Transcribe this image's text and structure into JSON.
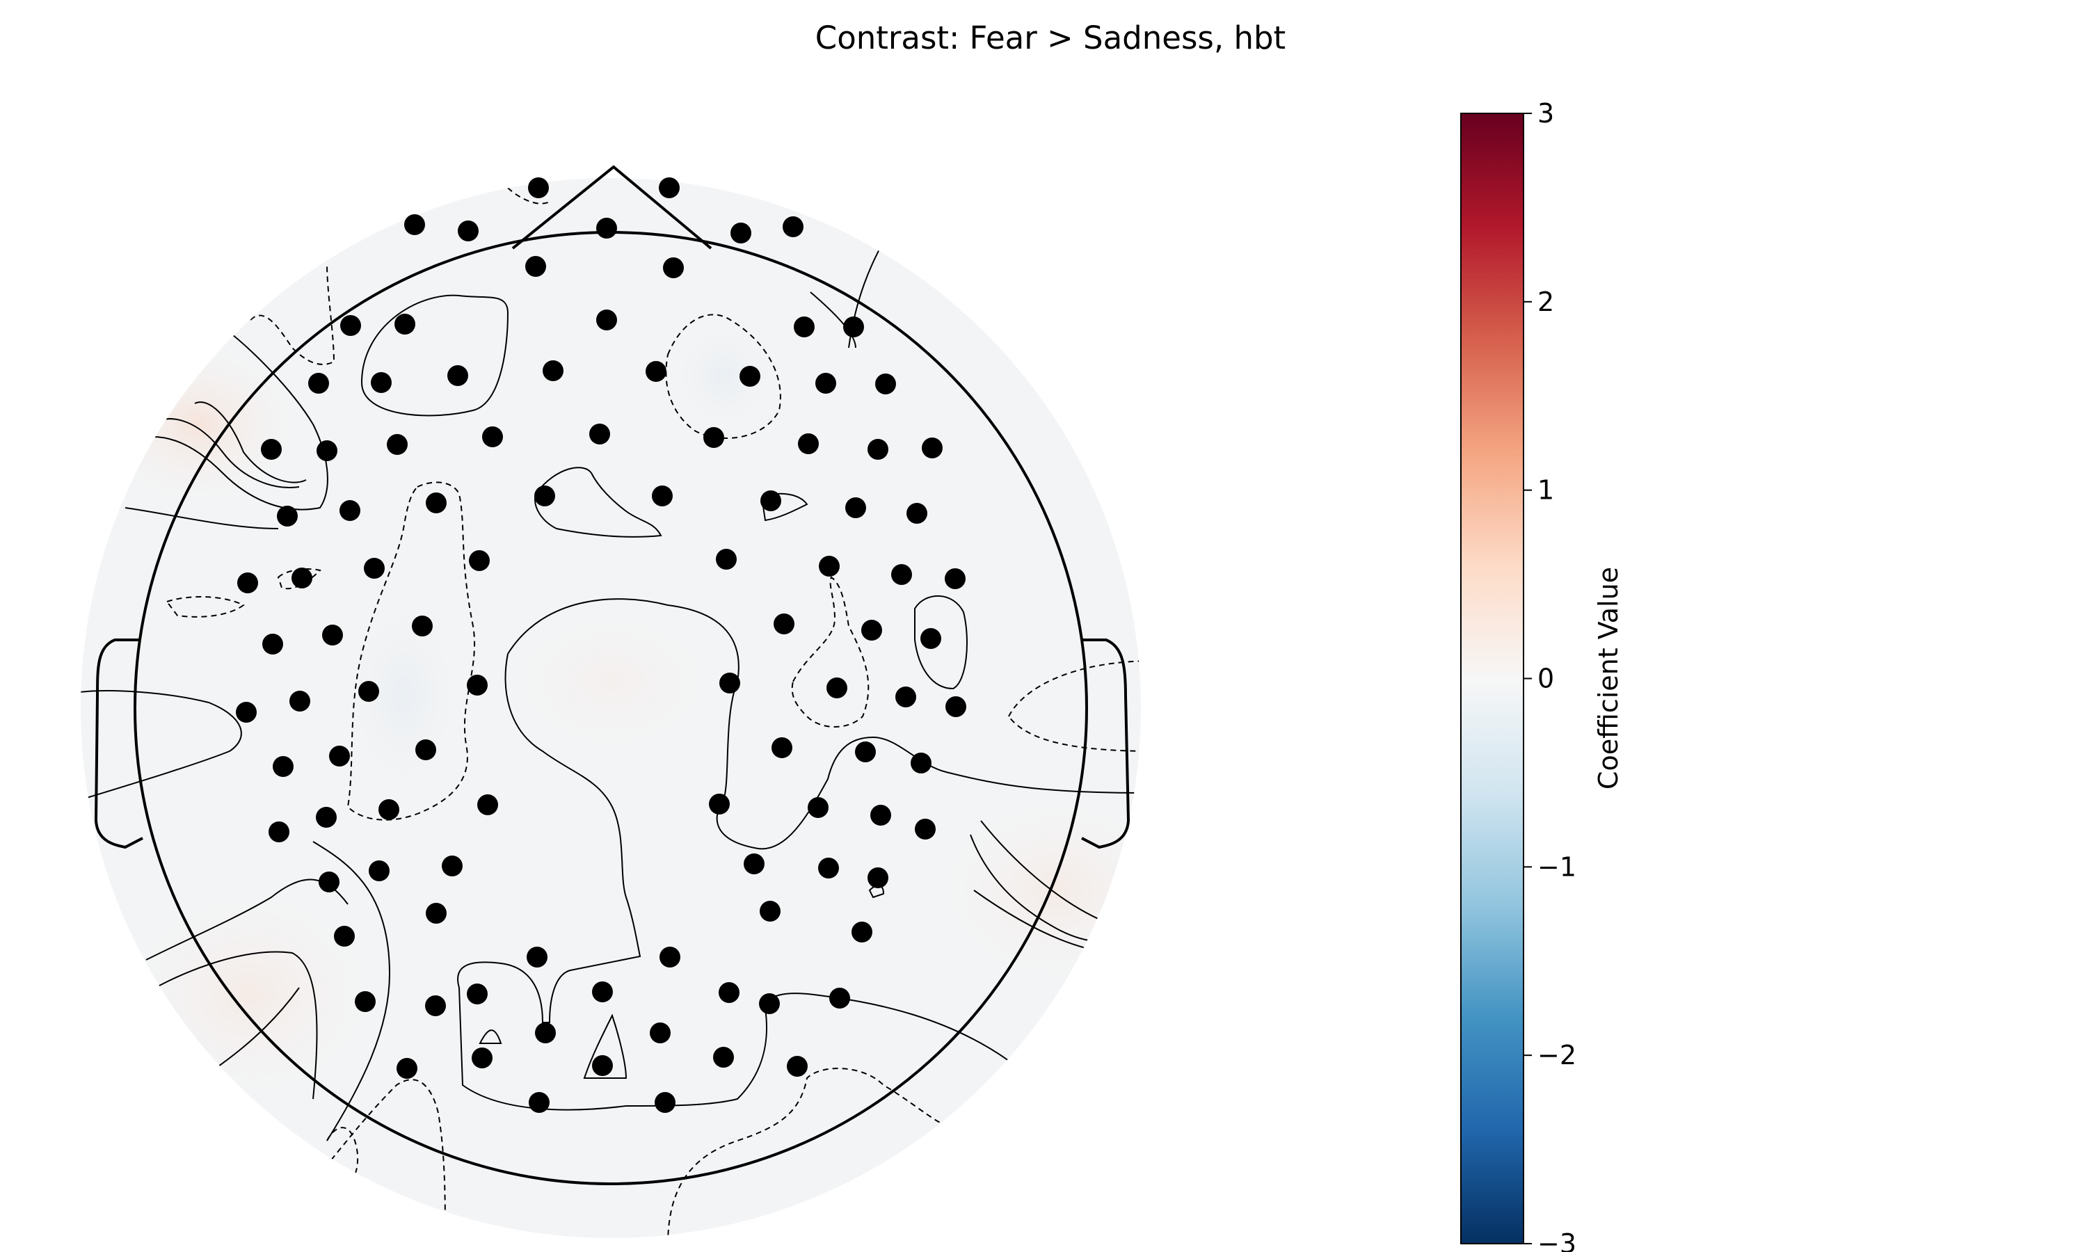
{
  "title": "Contrast: Fear > Sadness, hbt",
  "chart_data": {
    "type": "heatmap",
    "title": "Contrast: Fear > Sadness, hbt",
    "description_kind": "topographic head map",
    "colormap": "RdBu_r",
    "colorbar": {
      "label": "Coefficient Value",
      "range": [
        -3,
        3
      ],
      "ticks": [
        3,
        2,
        1,
        0,
        -1,
        -2,
        -3
      ],
      "tick_labels": [
        "3",
        "2",
        "1",
        "0",
        "−1",
        "−2",
        "−3"
      ]
    },
    "value_estimates": {
      "left_frontal_temporal_peak": 0.25,
      "left_posterior_temporal_peak": 0.1,
      "right_posterior_temporal_peak": 0.05,
      "center": 0.0,
      "overall_range_approx": [
        -0.1,
        0.3
      ]
    },
    "contours": {
      "positive": "solid",
      "negative": "dashed"
    },
    "sensor_count": 113
  },
  "colors": {
    "head_outline": "#000000",
    "sensor": "#000000",
    "background_field": "#f3f4f5"
  }
}
